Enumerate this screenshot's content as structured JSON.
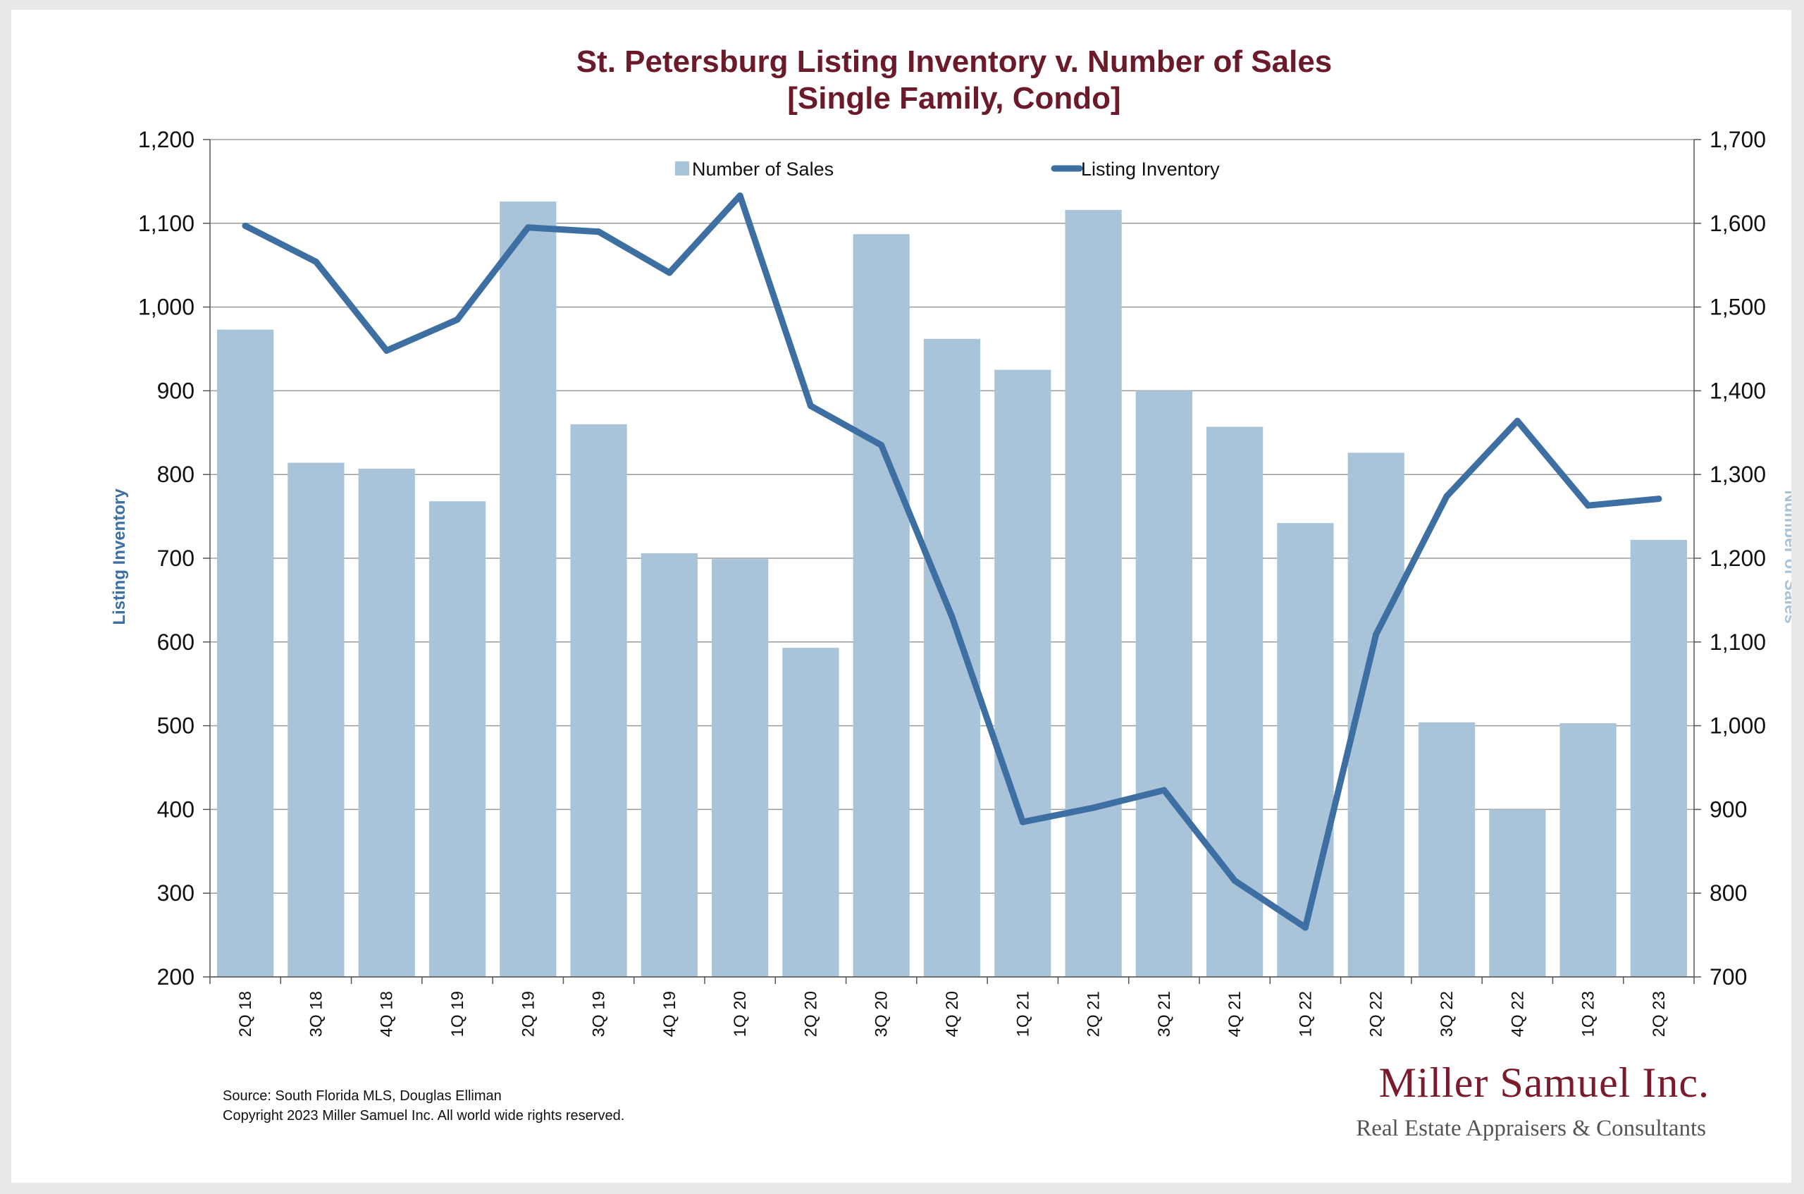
{
  "chart_data": {
    "type": "bar-line-dual-axis",
    "title": "St. Petersburg Listing Inventory v. Number of Sales",
    "subtitle": "[Single Family, Condo]",
    "categories": [
      "2Q 18",
      "3Q 18",
      "4Q 18",
      "1Q 19",
      "2Q 19",
      "3Q 19",
      "4Q 19",
      "1Q 20",
      "2Q 20",
      "3Q 20",
      "4Q 20",
      "1Q 21",
      "2Q 21",
      "3Q 21",
      "4Q 21",
      "1Q 22",
      "2Q 22",
      "3Q 22",
      "4Q 22",
      "1Q 23",
      "2Q 23"
    ],
    "series": [
      {
        "name": "Number of Sales",
        "type": "bar",
        "axis": "right",
        "color": "#a9c4d9",
        "values": [
          1473,
          1314,
          1307,
          1268,
          1626,
          1360,
          1206,
          1199,
          1093,
          1587,
          1462,
          1425,
          1616,
          1400,
          1357,
          1242,
          1326,
          1004,
          900,
          1003,
          1222
        ]
      },
      {
        "name": "Listing Inventory",
        "type": "line",
        "axis": "left",
        "color": "#3e6fa3",
        "values": [
          1097,
          1054,
          948,
          985,
          1095,
          1090,
          1041,
          1133,
          882,
          835,
          630,
          385,
          402,
          423,
          315,
          259,
          609,
          774,
          864,
          763,
          771
        ]
      }
    ],
    "y_left": {
      "label": "Listing Inventory",
      "min": 200,
      "max": 1200,
      "step": 100,
      "color": "#3e6fa3",
      "tick_labels": [
        "200",
        "300",
        "400",
        "500",
        "600",
        "700",
        "800",
        "900",
        "1,000",
        "1,100",
        "1,200"
      ]
    },
    "y_right": {
      "label": "Number of Sales",
      "min": 700,
      "max": 1700,
      "step": 100,
      "color": "#a9c4d9",
      "tick_labels": [
        "700",
        "800",
        "900",
        "1,000",
        "1,100",
        "1,200",
        "1,300",
        "1,400",
        "1,500",
        "1,600",
        "1,700"
      ]
    },
    "grid": true,
    "legend": "top-center"
  },
  "source": {
    "line1": "Source: South Florida MLS, Douglas Elliman",
    "line2": "Copyright 2023 Miller Samuel Inc.  All world wide rights reserved."
  },
  "logo": {
    "name": "Miller Samuel Inc.",
    "tagline": "Real Estate Appraisers & Consultants"
  }
}
